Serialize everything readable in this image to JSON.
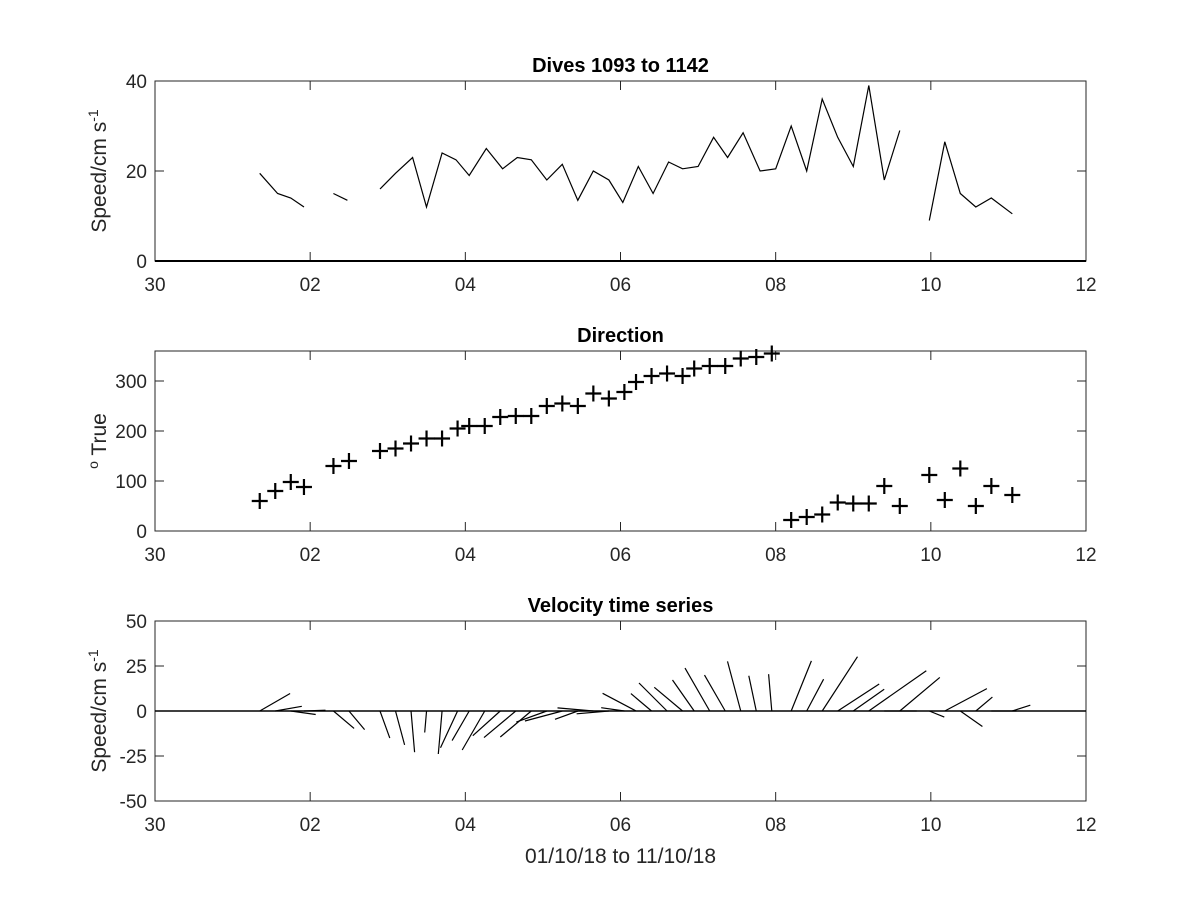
{
  "chart_data": [
    {
      "id": "speed",
      "type": "line",
      "title": "Dives 1093 to 1142",
      "ylabel": "Speed/cm s",
      "ylabel_superscript": "-1",
      "xlabel": "",
      "xlim": [
        0,
        12
      ],
      "ylim": [
        0,
        40
      ],
      "xticks": [
        0,
        2,
        4,
        6,
        8,
        10,
        12
      ],
      "xtick_labels": [
        "30",
        "02",
        "04",
        "06",
        "08",
        "10",
        "12"
      ],
      "yticks": [
        0,
        20,
        40
      ],
      "ytick_labels": [
        "0",
        "20",
        "40"
      ],
      "grid": false,
      "segments": [
        [
          [
            1.35,
            19.5
          ],
          [
            1.58,
            15
          ],
          [
            1.75,
            14
          ],
          [
            1.92,
            12
          ]
        ],
        [
          [
            2.3,
            15
          ],
          [
            2.48,
            13.5
          ]
        ],
        [
          [
            2.9,
            16
          ],
          [
            3.1,
            19.5
          ],
          [
            3.32,
            23
          ],
          [
            3.5,
            12
          ],
          [
            3.7,
            24
          ],
          [
            3.88,
            22.5
          ],
          [
            4.05,
            19
          ],
          [
            4.27,
            25
          ],
          [
            4.48,
            20.5
          ],
          [
            4.67,
            23
          ],
          [
            4.85,
            22.5
          ],
          [
            5.05,
            18
          ],
          [
            5.25,
            21.5
          ],
          [
            5.45,
            13.5
          ],
          [
            5.65,
            20
          ],
          [
            5.85,
            18
          ],
          [
            6.03,
            13
          ],
          [
            6.23,
            21
          ],
          [
            6.42,
            15
          ],
          [
            6.62,
            22
          ],
          [
            6.8,
            20.5
          ],
          [
            7.0,
            21
          ],
          [
            7.2,
            27.5
          ],
          [
            7.38,
            23
          ],
          [
            7.58,
            28.5
          ],
          [
            7.8,
            20
          ],
          [
            8.0,
            20.5
          ],
          [
            8.2,
            30
          ],
          [
            8.4,
            20
          ],
          [
            8.6,
            36
          ],
          [
            8.8,
            27.5
          ],
          [
            9.0,
            21
          ],
          [
            9.2,
            39
          ],
          [
            9.4,
            18
          ],
          [
            9.6,
            29
          ]
        ],
        [
          [
            9.98,
            9
          ],
          [
            10.18,
            26.5
          ],
          [
            10.38,
            15
          ],
          [
            10.58,
            12
          ],
          [
            10.78,
            14
          ],
          [
            11.05,
            10.5
          ]
        ]
      ]
    },
    {
      "id": "direction",
      "type": "scatter",
      "title": "Direction",
      "ylabel": "True",
      "ylabel_superscript": "o",
      "xlabel": "",
      "marker": "+",
      "xlim": [
        0,
        12
      ],
      "ylim": [
        0,
        360
      ],
      "xticks": [
        0,
        2,
        4,
        6,
        8,
        10,
        12
      ],
      "xtick_labels": [
        "30",
        "02",
        "04",
        "06",
        "08",
        "10",
        "12"
      ],
      "yticks": [
        0,
        100,
        200,
        300
      ],
      "ytick_labels": [
        "0",
        "100",
        "200",
        "300"
      ],
      "grid": false,
      "points": [
        [
          1.35,
          60
        ],
        [
          1.55,
          80
        ],
        [
          1.75,
          98
        ],
        [
          1.92,
          88
        ],
        [
          2.3,
          130
        ],
        [
          2.5,
          140
        ],
        [
          2.9,
          160
        ],
        [
          3.1,
          165
        ],
        [
          3.3,
          175
        ],
        [
          3.5,
          185
        ],
        [
          3.7,
          185
        ],
        [
          3.9,
          205
        ],
        [
          4.05,
          210
        ],
        [
          4.25,
          210
        ],
        [
          4.45,
          228
        ],
        [
          4.65,
          230
        ],
        [
          4.85,
          230
        ],
        [
          5.05,
          250
        ],
        [
          5.25,
          255
        ],
        [
          5.45,
          250
        ],
        [
          5.65,
          275
        ],
        [
          5.85,
          265
        ],
        [
          6.05,
          278
        ],
        [
          6.2,
          298
        ],
        [
          6.4,
          310
        ],
        [
          6.6,
          315
        ],
        [
          6.8,
          310
        ],
        [
          6.95,
          325
        ],
        [
          7.15,
          330
        ],
        [
          7.35,
          330
        ],
        [
          7.55,
          345
        ],
        [
          7.75,
          348
        ],
        [
          7.95,
          355
        ],
        [
          8.2,
          22
        ],
        [
          8.4,
          28
        ],
        [
          8.6,
          33
        ],
        [
          8.8,
          57
        ],
        [
          9.0,
          55
        ],
        [
          9.2,
          55
        ],
        [
          9.4,
          90
        ],
        [
          9.6,
          50
        ],
        [
          9.98,
          112
        ],
        [
          10.18,
          62
        ],
        [
          10.38,
          125
        ],
        [
          10.58,
          50
        ],
        [
          10.78,
          90
        ],
        [
          11.05,
          72
        ]
      ]
    },
    {
      "id": "velocity",
      "type": "stick",
      "title": "Velocity time series",
      "ylabel": "Speed/cm s",
      "ylabel_superscript": "-1",
      "xlabel": "01/10/18 to 11/10/18",
      "xlim": [
        0,
        12
      ],
      "ylim": [
        -50,
        50
      ],
      "xticks": [
        0,
        2,
        4,
        6,
        8,
        10,
        12
      ],
      "xtick_labels": [
        "30",
        "02",
        "04",
        "06",
        "08",
        "10",
        "12"
      ],
      "yticks": [
        -50,
        -25,
        0,
        25,
        50
      ],
      "ytick_labels": [
        "-50",
        "-25",
        "0",
        "25",
        "50"
      ],
      "grid": false,
      "sticks": [
        [
          1.35,
          19.5,
          60
        ],
        [
          1.55,
          15,
          80
        ],
        [
          1.75,
          14,
          98
        ],
        [
          1.92,
          12,
          88
        ],
        [
          2.3,
          15,
          130
        ],
        [
          2.5,
          13.5,
          140
        ],
        [
          2.9,
          16,
          160
        ],
        [
          3.1,
          19.5,
          165
        ],
        [
          3.3,
          23,
          175
        ],
        [
          3.5,
          12,
          185
        ],
        [
          3.7,
          24,
          185
        ],
        [
          3.9,
          22.5,
          205
        ],
        [
          4.05,
          19,
          210
        ],
        [
          4.25,
          25,
          210
        ],
        [
          4.45,
          20.5,
          228
        ],
        [
          4.65,
          23,
          230
        ],
        [
          4.85,
          22.5,
          230
        ],
        [
          5.05,
          18,
          250
        ],
        [
          5.25,
          21.5,
          255
        ],
        [
          5.45,
          13.5,
          250
        ],
        [
          5.65,
          20,
          275
        ],
        [
          5.85,
          18,
          265
        ],
        [
          6.05,
          13,
          278
        ],
        [
          6.2,
          21,
          298
        ],
        [
          6.4,
          15,
          310
        ],
        [
          6.6,
          22,
          315
        ],
        [
          6.8,
          20.5,
          310
        ],
        [
          6.95,
          21,
          325
        ],
        [
          7.15,
          27.5,
          330
        ],
        [
          7.35,
          23,
          330
        ],
        [
          7.55,
          28.5,
          345
        ],
        [
          7.75,
          20,
          348
        ],
        [
          7.95,
          20.5,
          355
        ],
        [
          8.2,
          30,
          22
        ],
        [
          8.4,
          20,
          28
        ],
        [
          8.6,
          36,
          33
        ],
        [
          8.8,
          27.5,
          57
        ],
        [
          9.0,
          21,
          55
        ],
        [
          9.2,
          39,
          55
        ],
        [
          9.4,
          18,
          90
        ],
        [
          9.6,
          29,
          50
        ],
        [
          9.98,
          9,
          112
        ],
        [
          10.18,
          26.5,
          62
        ],
        [
          10.38,
          15,
          125
        ],
        [
          10.58,
          12,
          50
        ],
        [
          10.78,
          14,
          90
        ],
        [
          11.05,
          10.5,
          72
        ]
      ]
    }
  ]
}
